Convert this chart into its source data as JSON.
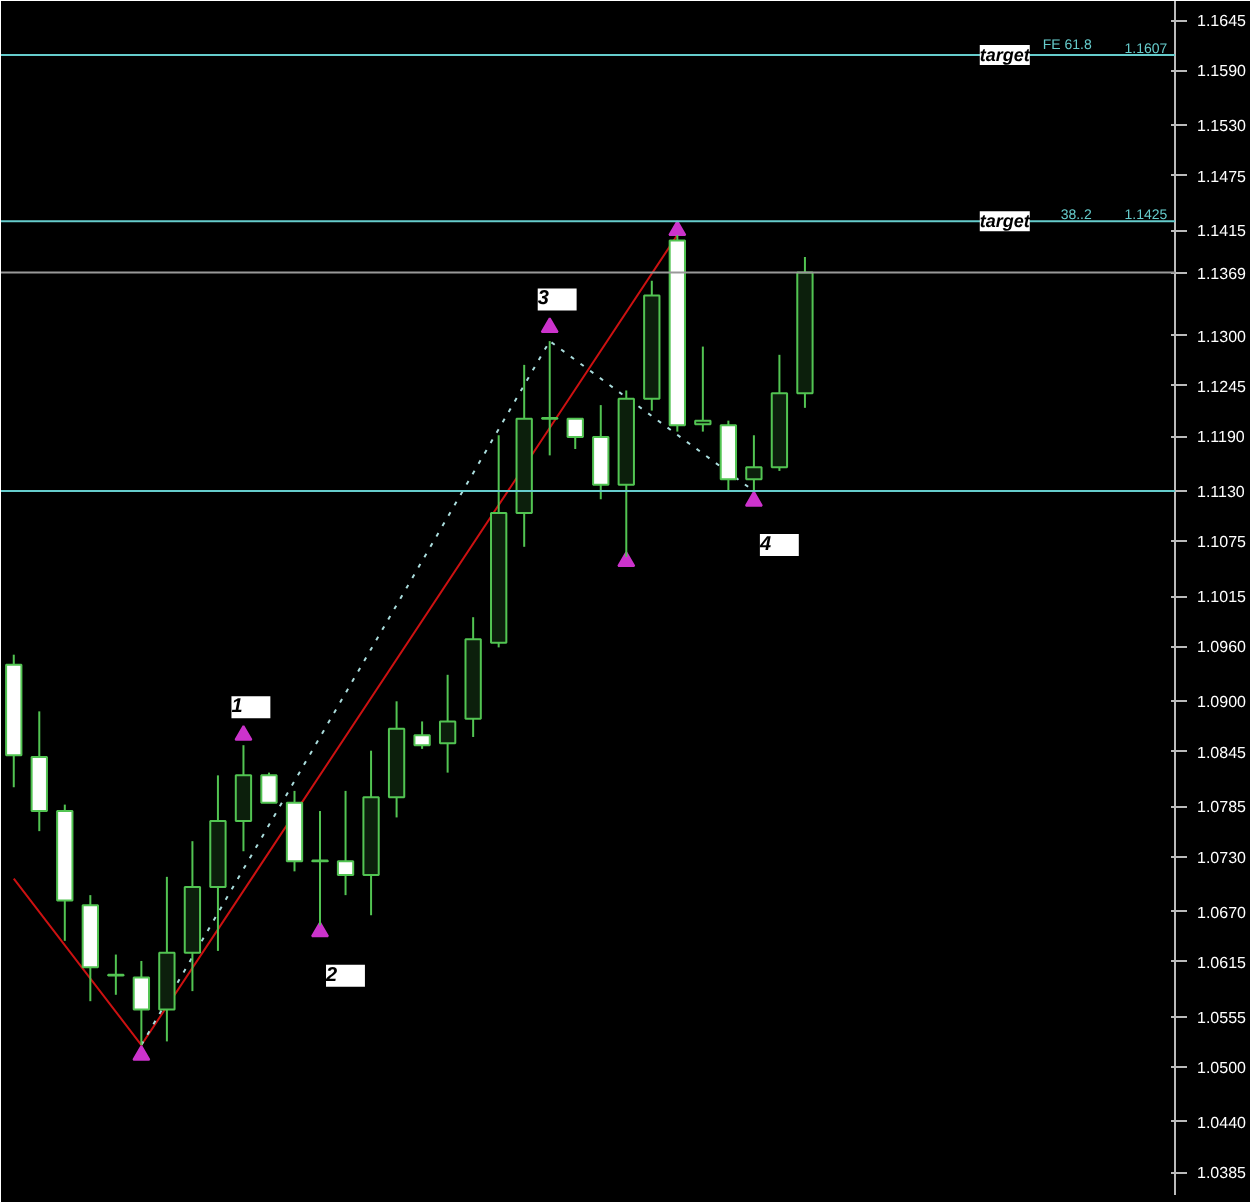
{
  "chart_data": {
    "type": "candlestick",
    "categories": [
      null,
      null,
      null,
      null,
      null,
      null,
      null,
      null,
      null,
      null,
      null,
      null,
      null,
      null,
      null,
      null,
      null,
      null,
      null,
      null,
      null,
      null,
      null,
      null,
      null,
      null,
      null,
      null,
      null,
      null,
      null,
      null,
      null,
      null,
      null,
      null,
      null,
      null,
      null,
      null,
      null,
      null,
      null,
      null,
      null,
      null
    ],
    "ohlc": [
      [
        1.094,
        1.0951,
        1.0806,
        1.0841
      ],
      [
        1.0839,
        1.0889,
        1.0758,
        1.078
      ],
      [
        1.078,
        1.0787,
        1.0638,
        1.0682
      ],
      [
        1.0677,
        1.0688,
        1.0572,
        1.0609
      ],
      [
        1.0601,
        1.0623,
        1.0579,
        1.06
      ],
      [
        1.0598,
        1.0616,
        1.0524,
        1.0563
      ],
      [
        1.0563,
        1.0708,
        1.0528,
        1.0625
      ],
      [
        1.0625,
        1.0747,
        1.0583,
        1.0697
      ],
      [
        1.0697,
        1.0819,
        1.0627,
        1.0769
      ],
      [
        1.0769,
        1.0852,
        1.0736,
        1.0819
      ],
      [
        1.0819,
        1.0822,
        1.0789,
        1.0789
      ],
      [
        1.0789,
        1.0802,
        1.0714,
        1.0725
      ],
      [
        1.0725,
        1.078,
        1.0655,
        1.0726
      ],
      [
        1.0725,
        1.0802,
        1.0688,
        1.071
      ],
      [
        1.071,
        1.0846,
        1.0666,
        1.0795
      ],
      [
        1.0795,
        1.09,
        1.0773,
        1.087
      ],
      [
        1.0863,
        1.0878,
        1.0848,
        1.0852
      ],
      [
        1.0854,
        1.0929,
        1.0822,
        1.0878
      ],
      [
        1.0881,
        1.0992,
        1.0861,
        1.0968
      ],
      [
        1.0964,
        1.1191,
        1.0959,
        1.1106
      ],
      [
        1.1106,
        1.1268,
        1.1069,
        1.1209
      ],
      [
        1.1209,
        1.1294,
        1.1169,
        1.121
      ],
      [
        1.1209,
        1.1209,
        1.1176,
        1.1189
      ],
      [
        1.1189,
        1.1224,
        1.1121,
        1.1137
      ],
      [
        1.1137,
        1.124,
        1.1058,
        1.1231
      ],
      [
        1.1231,
        1.136,
        1.1218,
        1.1344
      ],
      [
        1.1404,
        1.141,
        1.1195,
        1.1202
      ],
      [
        1.1203,
        1.1288,
        1.1195,
        1.1207
      ],
      [
        1.1202,
        1.1207,
        1.113,
        1.1143
      ],
      [
        1.1143,
        1.1191,
        1.113,
        1.1156
      ],
      [
        1.1156,
        1.1279,
        1.1152,
        1.1237
      ],
      [
        1.1237,
        1.1386,
        1.1221,
        1.1369
      ],
      null,
      null,
      null,
      null,
      null,
      null,
      null,
      null,
      null,
      null,
      null,
      null,
      null,
      null
    ],
    "series": [
      {
        "type": "line",
        "color": "#cc1111",
        "line_style": "solid",
        "values": [
          1.0706,
          null,
          null,
          null,
          null,
          1.0524,
          null,
          null,
          null,
          null,
          null,
          null,
          null,
          null,
          null,
          null,
          null,
          null,
          null,
          null,
          null,
          null,
          null,
          null,
          null,
          null,
          1.141,
          null,
          null,
          null,
          null,
          null,
          null,
          null,
          null,
          null,
          null,
          null,
          null,
          null,
          null,
          null,
          null,
          null,
          null,
          null
        ]
      },
      {
        "type": "line",
        "color": "#aadddd",
        "line_style": "dotted",
        "values": [
          null,
          null,
          null,
          null,
          null,
          1.0524,
          null,
          null,
          null,
          null,
          null,
          null,
          null,
          null,
          null,
          null,
          null,
          null,
          null,
          null,
          null,
          1.1294,
          null,
          null,
          null,
          null,
          null,
          null,
          null,
          1.113,
          null,
          null,
          null,
          null,
          null,
          null,
          null,
          null,
          null,
          null,
          null,
          null,
          null,
          null,
          null,
          null
        ]
      },
      {
        "type": "scatter",
        "color": "#cc33cc",
        "marker": "triangle",
        "values": [
          null,
          null,
          null,
          null,
          null,
          1.0513,
          null,
          null,
          null,
          null,
          null,
          null,
          null,
          null,
          null,
          null,
          null,
          null,
          null,
          null,
          null,
          null,
          null,
          null,
          1.1053,
          null,
          1.1415,
          null,
          null,
          null,
          null,
          null,
          null,
          null,
          null,
          null,
          null,
          null,
          null,
          null,
          null,
          null,
          null,
          null,
          null,
          null
        ]
      },
      {
        "type": "scatter",
        "name": "1",
        "color": "#cc33cc",
        "marker": "triangle",
        "values": [
          null,
          null,
          null,
          null,
          null,
          null,
          null,
          null,
          null,
          1.0863,
          null,
          null,
          null,
          null,
          null,
          null,
          null,
          null,
          null,
          null,
          null,
          null,
          null,
          null,
          null,
          null,
          null,
          null,
          null,
          null,
          null,
          null,
          null,
          null,
          null,
          null,
          null,
          null,
          null,
          null,
          null,
          null,
          null,
          null,
          null,
          null
        ]
      },
      {
        "type": "scatter",
        "name": "2",
        "color": "#cc33cc",
        "marker": "triangle",
        "values": [
          null,
          null,
          null,
          null,
          null,
          null,
          null,
          null,
          null,
          null,
          null,
          null,
          1.0648,
          null,
          null,
          null,
          null,
          null,
          null,
          null,
          null,
          null,
          null,
          null,
          null,
          null,
          null,
          null,
          null,
          null,
          null,
          null,
          null,
          null,
          null,
          null,
          null,
          null,
          null,
          null,
          null,
          null,
          null,
          null,
          null,
          null
        ]
      },
      {
        "type": "scatter",
        "name": "3",
        "color": "#cc33cc",
        "marker": "triangle",
        "values": [
          null,
          null,
          null,
          null,
          null,
          null,
          null,
          null,
          null,
          null,
          null,
          null,
          null,
          null,
          null,
          null,
          null,
          null,
          null,
          null,
          null,
          1.1309,
          null,
          null,
          null,
          null,
          null,
          null,
          null,
          null,
          null,
          null,
          null,
          null,
          null,
          null,
          null,
          null,
          null,
          null,
          null,
          null,
          null,
          null,
          null,
          null
        ]
      },
      {
        "type": "scatter",
        "name": "4",
        "color": "#cc33cc",
        "marker": "triangle",
        "values": [
          null,
          null,
          null,
          null,
          null,
          null,
          null,
          null,
          null,
          null,
          null,
          null,
          null,
          null,
          null,
          null,
          null,
          null,
          null,
          null,
          null,
          null,
          null,
          null,
          null,
          null,
          null,
          null,
          null,
          1.1119,
          null,
          null,
          null,
          null,
          null,
          null,
          null,
          null,
          null,
          null,
          null,
          null,
          null,
          null,
          null,
          null
        ]
      }
    ],
    "ylim": [
      1.036,
      1.1666
    ],
    "yticks": [
      {
        "value": 1.1645,
        "label": "1.1645"
      },
      {
        "value": 1.159,
        "label": "1.1590"
      },
      {
        "value": 1.153,
        "label": "1.1530"
      },
      {
        "value": 1.1475,
        "label": "1.1475"
      },
      {
        "value": 1.1415,
        "label": "1.1415"
      },
      {
        "value": 1.1369,
        "label": "1.1369"
      },
      {
        "value": 1.13,
        "label": "1.1300"
      },
      {
        "value": 1.1245,
        "label": "1.1245"
      },
      {
        "value": 1.119,
        "label": "1.1190"
      },
      {
        "value": 1.113,
        "label": "1.1130"
      },
      {
        "value": 1.1075,
        "label": "1.1075"
      },
      {
        "value": 1.1015,
        "label": "1.1015"
      },
      {
        "value": 1.096,
        "label": "1.0960"
      },
      {
        "value": 1.09,
        "label": "1.0900"
      },
      {
        "value": 1.0845,
        "label": "1.0845"
      },
      {
        "value": 1.0785,
        "label": "1.0785"
      },
      {
        "value": 1.073,
        "label": "1.0730"
      },
      {
        "value": 1.067,
        "label": "1.0670"
      },
      {
        "value": 1.0615,
        "label": "1.0615"
      },
      {
        "value": 1.0555,
        "label": "1.0555"
      },
      {
        "value": 1.05,
        "label": "1.0500"
      },
      {
        "value": 1.044,
        "label": "1.0440"
      },
      {
        "value": 1.0385,
        "label": "1.0385"
      }
    ],
    "tick_labels": "y",
    "ref_lines": [
      {
        "axis": "y",
        "value": 1.1607,
        "label": "target",
        "color": "#66cccc"
      },
      {
        "axis": "y",
        "value": 1.1425,
        "label": "target",
        "color": "#66cccc"
      },
      {
        "axis": "y",
        "value": 1.1369,
        "color": "#999999"
      },
      {
        "axis": "y",
        "value": 1.113,
        "color": "#66cccc"
      }
    ],
    "annotations": [
      {
        "text": "FE 61.8",
        "y": 1.1607
      },
      {
        "text": "1.1607",
        "y": 1.1607
      },
      {
        "text": "38..2",
        "y": 1.1425
      },
      {
        "text": "1.1425",
        "y": 1.1425
      }
    ]
  }
}
